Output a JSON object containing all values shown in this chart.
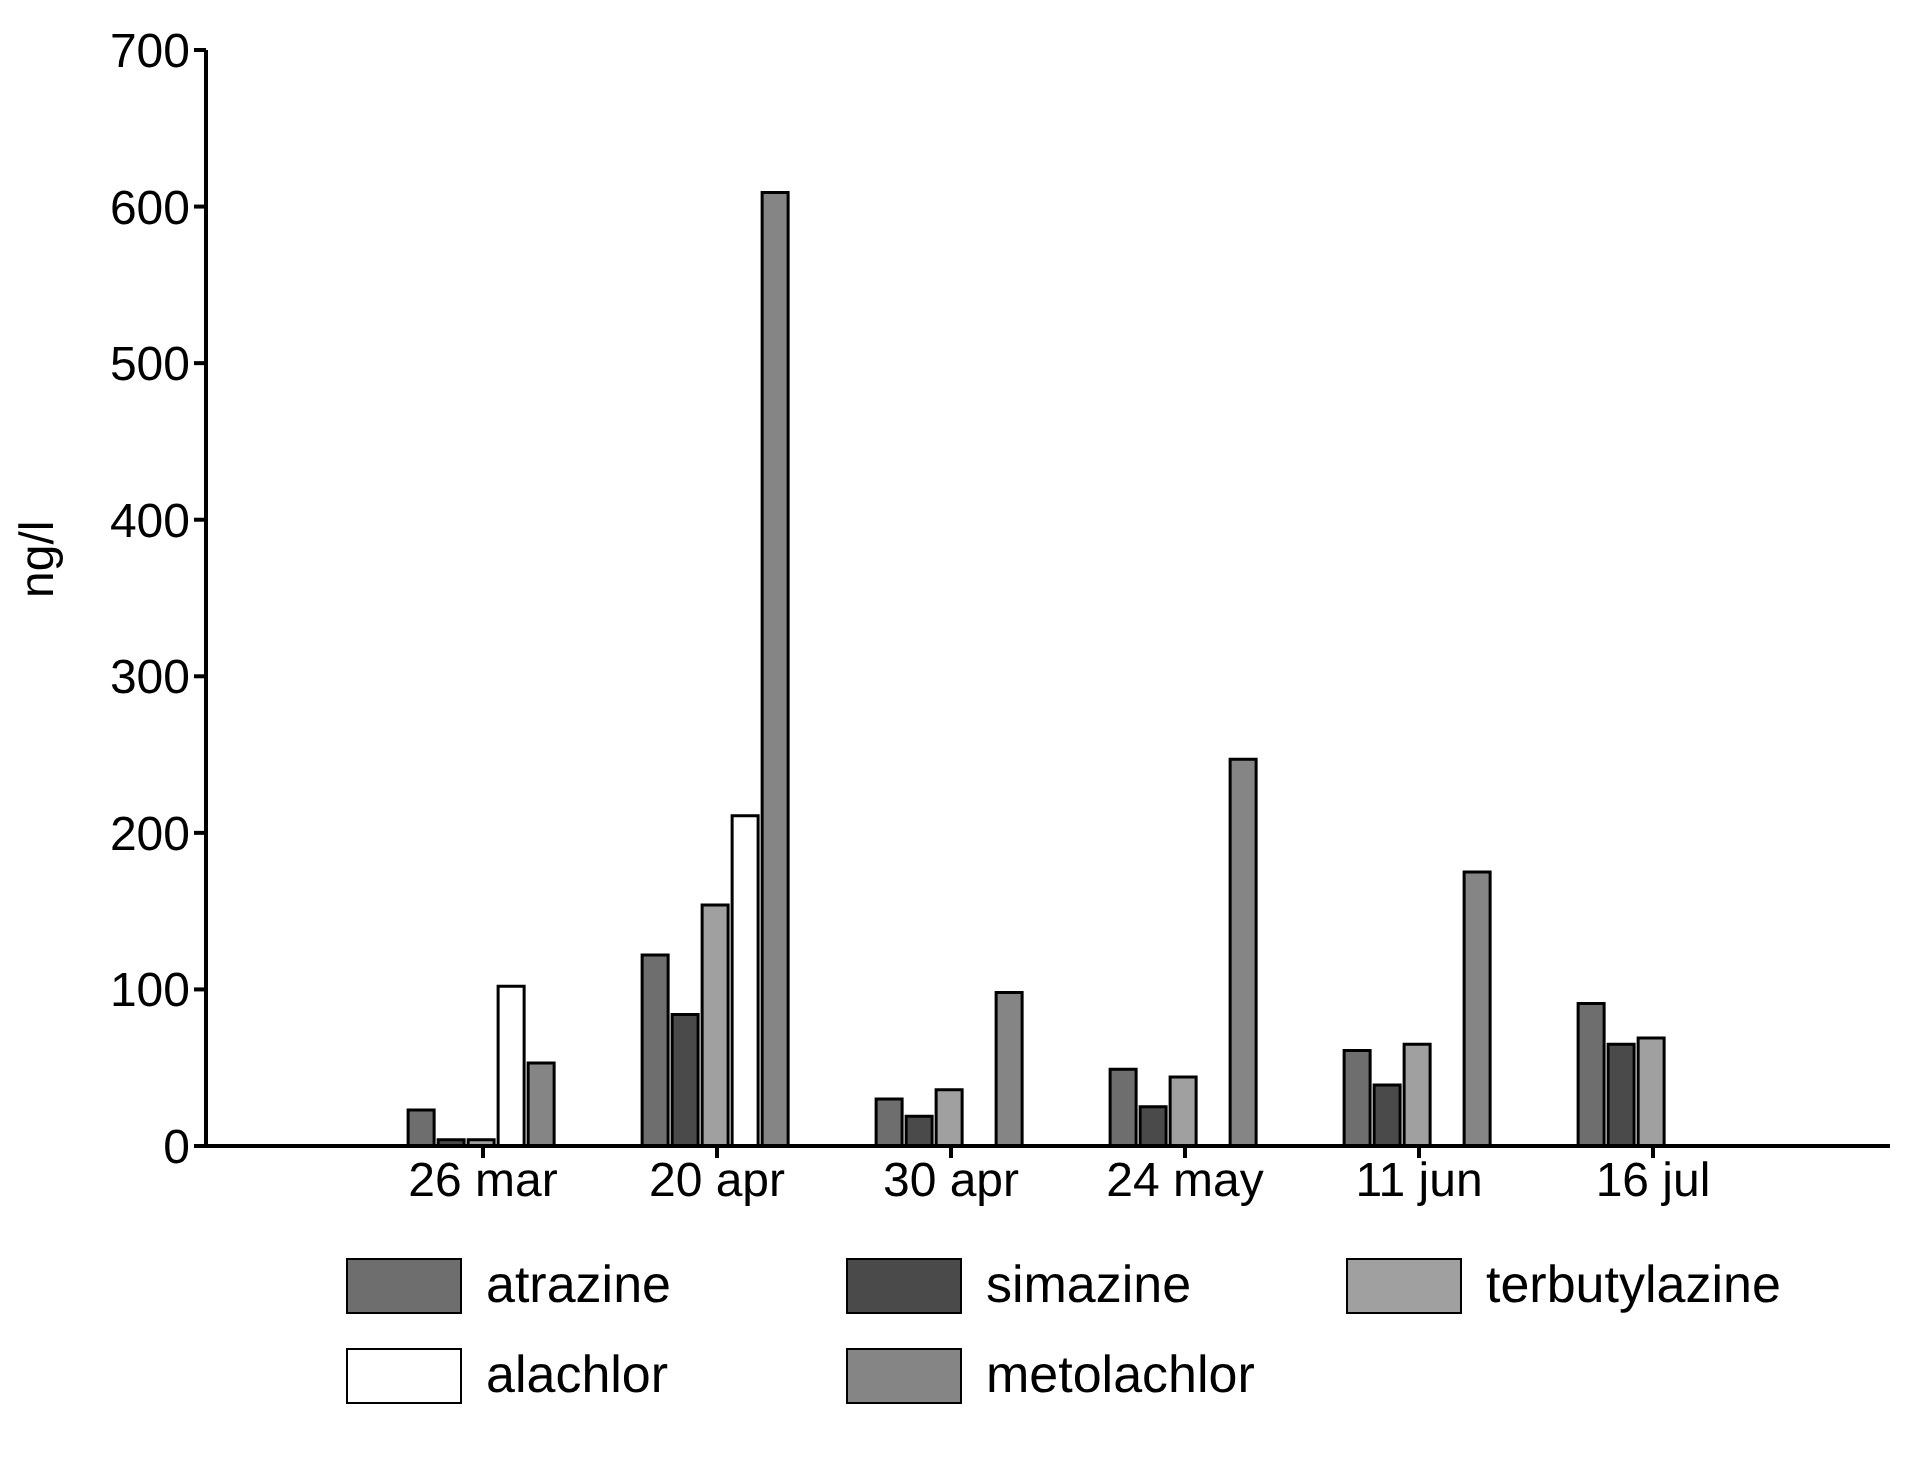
{
  "chart_data": {
    "type": "bar",
    "ylabel": "ng/l",
    "categories": [
      "26 mar",
      "20 apr",
      "30 apr",
      "24 may",
      "11 jun",
      "16 jul"
    ],
    "ylim": [
      0,
      700
    ],
    "yticks": [
      0,
      100,
      200,
      300,
      400,
      500,
      600,
      700
    ],
    "grid": false,
    "legend": "bottom",
    "series": [
      {
        "name": "atrazine",
        "color": "#6e6e6e",
        "values": [
          23,
          122,
          30,
          49,
          61,
          91
        ]
      },
      {
        "name": "simazine",
        "color": "#4a4a4a",
        "values": [
          4,
          84,
          19,
          25,
          39,
          65
        ]
      },
      {
        "name": "terbutylazine",
        "color": "#a0a0a0",
        "values": [
          4,
          154,
          36,
          44,
          65,
          69
        ]
      },
      {
        "name": "alachlor",
        "color": "#ffffff",
        "values": [
          102,
          211,
          0,
          0,
          0,
          0
        ]
      },
      {
        "name": "metolachlor",
        "color": "#858585",
        "values": [
          53,
          609,
          98,
          247,
          175,
          0
        ]
      }
    ]
  }
}
